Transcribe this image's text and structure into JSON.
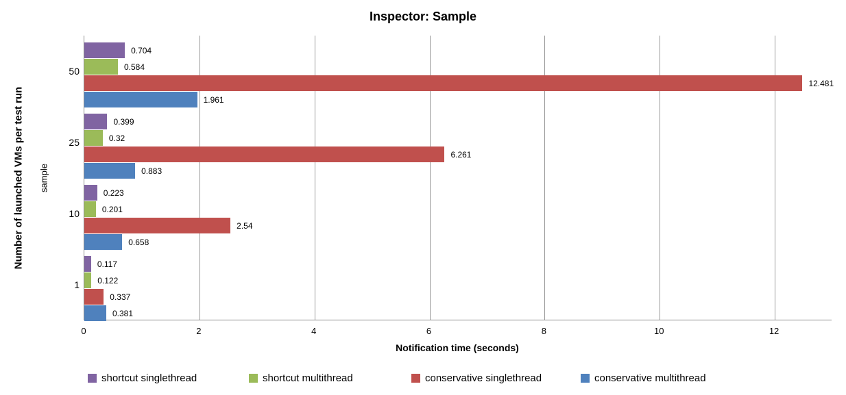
{
  "chart_data": {
    "type": "bar",
    "orientation": "horizontal",
    "title": "Inspector: Sample",
    "xlabel": "Notification time (seconds)",
    "ylabel_outer": "Number of launched VMs per test run",
    "ylabel_inner": "sample",
    "categories": [
      "50",
      "25",
      "10",
      "1"
    ],
    "series": [
      {
        "name": "shortcut singlethread",
        "color": "#8064A2",
        "values": [
          0.704,
          0.399,
          0.223,
          0.117
        ],
        "labels": [
          "0.704",
          "0.399",
          "0.223",
          "0.117"
        ]
      },
      {
        "name": "shortcut multithread",
        "color": "#9BBB59",
        "values": [
          0.584,
          0.32,
          0.201,
          0.122
        ],
        "labels": [
          "0.584",
          "0.32",
          "0.201",
          "0.122"
        ]
      },
      {
        "name": "conservative singlethread",
        "color": "#C0504D",
        "values": [
          12.481,
          6.261,
          2.54,
          0.337
        ],
        "labels": [
          "12.481",
          "6.261",
          "2.54",
          "0.337"
        ]
      },
      {
        "name": "conservative multithread",
        "color": "#4F81BD",
        "values": [
          1.961,
          0.883,
          0.658,
          0.381
        ],
        "labels": [
          "1.961",
          "0.883",
          "0.658",
          "0.381"
        ]
      }
    ],
    "x_ticks": [
      "0",
      "2",
      "4",
      "6",
      "8",
      "10",
      "12"
    ],
    "xlim": [
      0,
      13
    ],
    "grid": true,
    "legend_position": "bottom",
    "colors": {
      "gridline": "#989898",
      "axis_line": "#898989",
      "text": "#000000",
      "background": "#FFFFFF"
    }
  }
}
